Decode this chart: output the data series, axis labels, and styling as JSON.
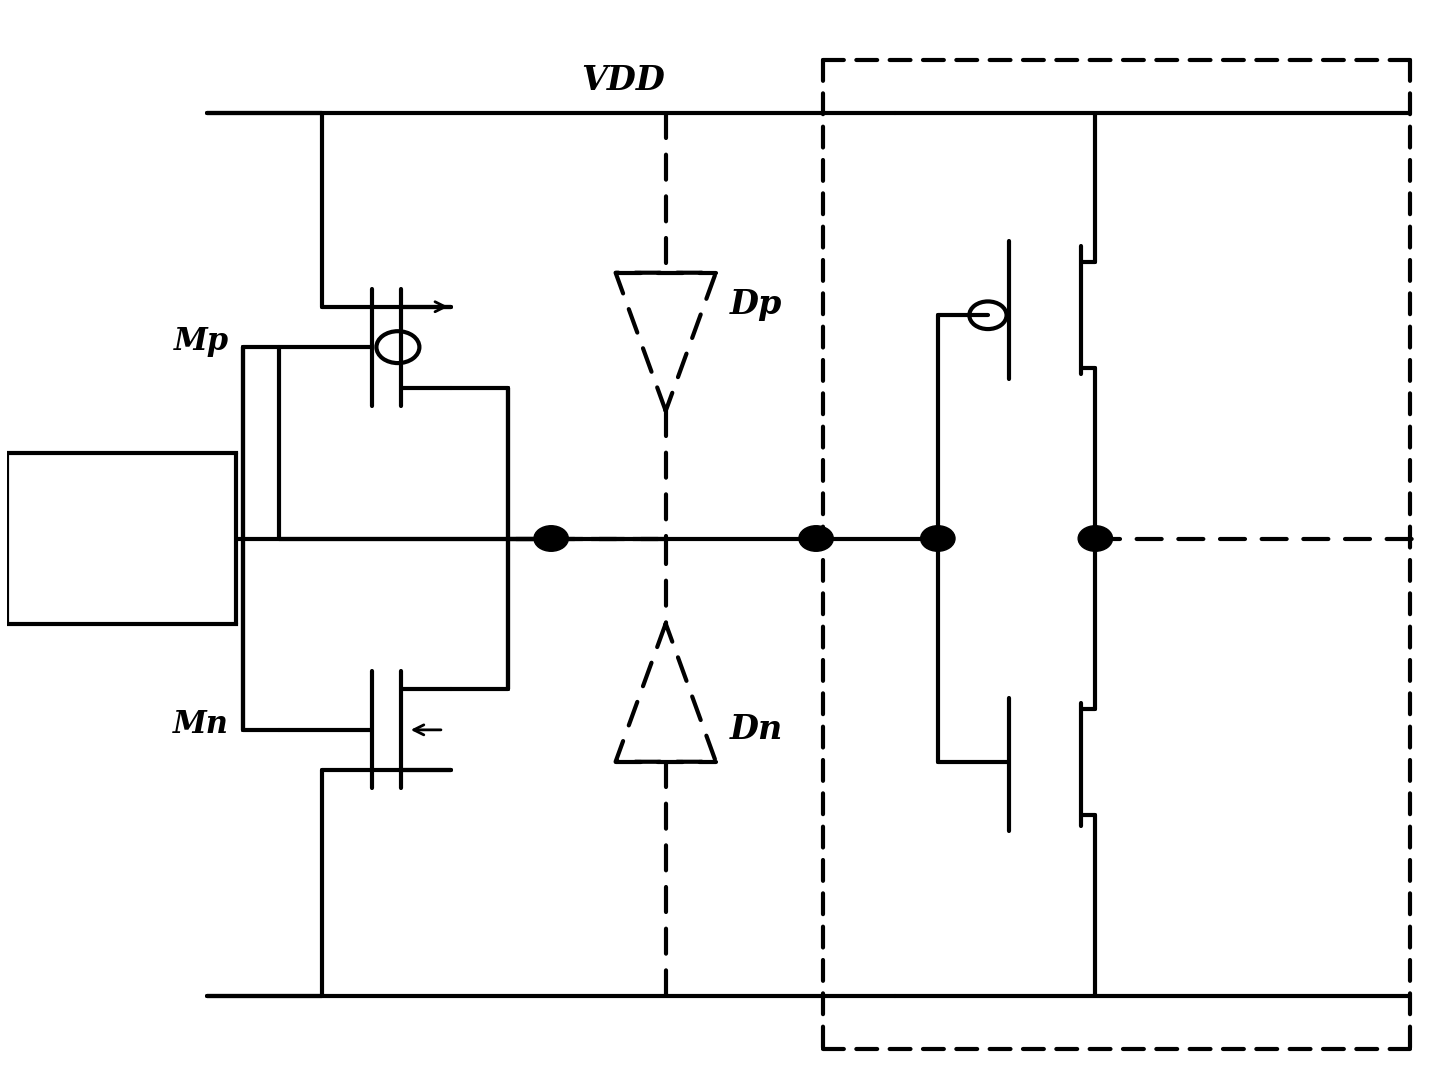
{
  "bg_color": "#ffffff",
  "line_color": "#000000",
  "lw": 3.0,
  "fig_width": 14.46,
  "fig_height": 10.77,
  "vdd_label": "VDD",
  "mp_label": "Mp",
  "mn_label": "Mn",
  "dp_label": "Dp",
  "dn_label": "Dn"
}
